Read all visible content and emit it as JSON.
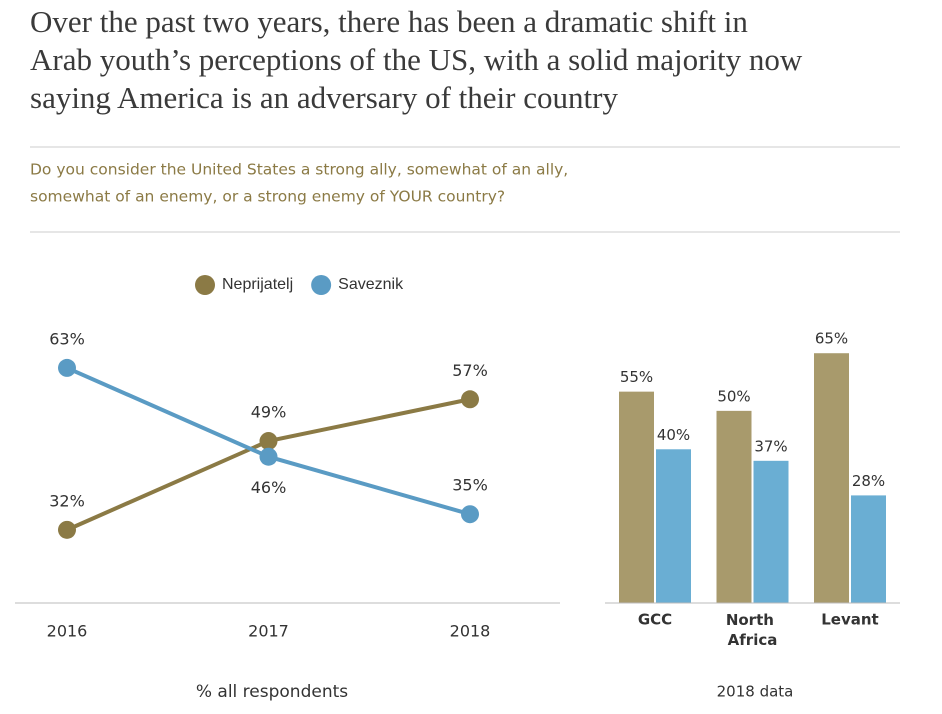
{
  "header": {
    "title": [
      "Over the past two years, there has been a dramatic shift in",
      "Arab youth’s perceptions of the US, with a solid majority now",
      "saying America is an adversary of their country"
    ],
    "question": [
      "Do you consider the United States a strong ally, somewhat of an ally,",
      "somewhat of an enemy, or a strong enemy of YOUR country?"
    ]
  },
  "chart_data": [
    {
      "type": "line",
      "note": "% all respondents",
      "categories": [
        "2016",
        "2017",
        "2018"
      ],
      "series": [
        {
          "name": "Neprijatelj",
          "color": "#8b7a45",
          "values": [
            32,
            49,
            57
          ],
          "value_labels": [
            "32%",
            "49%",
            "57%"
          ]
        },
        {
          "name": "Saveznik",
          "color": "#5a9bc4",
          "values": [
            63,
            46,
            35
          ],
          "value_labels": [
            "63%",
            "46%",
            "35%"
          ]
        }
      ],
      "ylim": [
        18,
        76
      ]
    },
    {
      "type": "bar",
      "note": "2018 data",
      "categories": [
        "GCC",
        "North Africa",
        "Levant"
      ],
      "series": [
        {
          "color": "#a89a6c",
          "values": [
            55,
            50,
            65
          ],
          "value_labels": [
            "55%",
            "50%",
            "65%"
          ]
        },
        {
          "color": "#6aaed3",
          "values": [
            40,
            37,
            28
          ],
          "value_labels": [
            "40%",
            "37%",
            "28%"
          ]
        }
      ],
      "ylim": [
        0,
        70
      ]
    }
  ]
}
